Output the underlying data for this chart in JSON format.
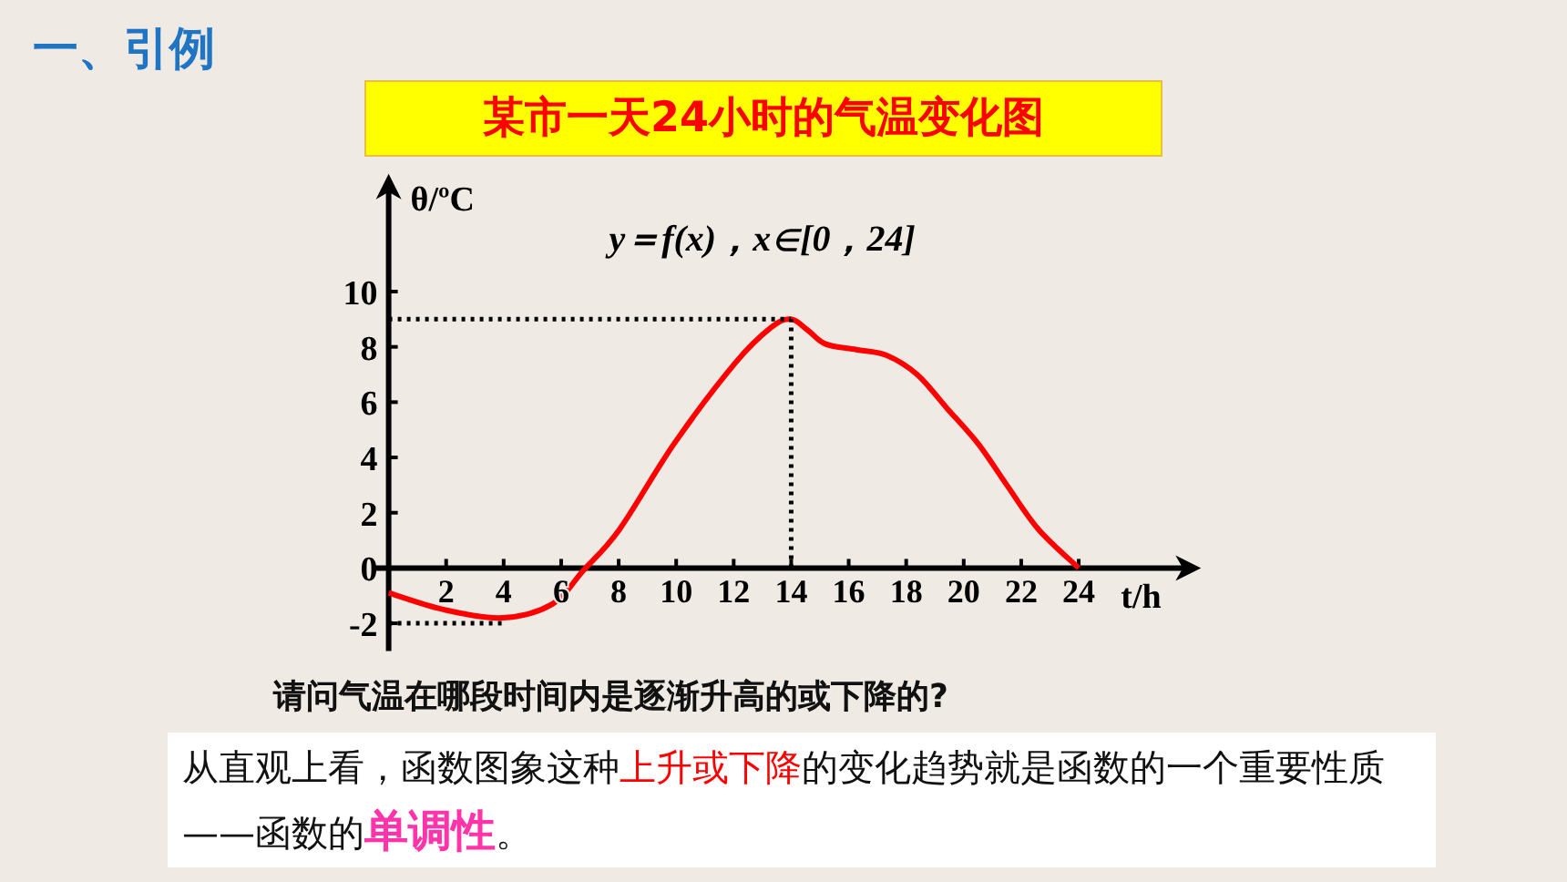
{
  "chart_data": {
    "type": "line",
    "title": "某市一天24小时的气温变化图",
    "xlabel": "t/h",
    "ylabel": "θ/ºC",
    "annotations": [
      "一、引例",
      "y＝f(x)，x∈[0，24]",
      "请问气温在哪段时间内是逐渐升高的或下降的?",
      "从直观上看，函数图象这种",
      "上升或下降",
      "的变化趋势就是函数的一个重要性质——函数的",
      "单调性",
      "。"
    ],
    "x": [
      0,
      1.9,
      3.97,
      5.7,
      6.76,
      8.03,
      9.93,
      12.04,
      13.3,
      13.99,
      14.58,
      15.2,
      16.27,
      17.3,
      18.38,
      19.4,
      20.5,
      21.5,
      22.6,
      24
    ],
    "series": [
      {
        "color": "#ff0000",
        "values": [
          -0.9,
          -1.5,
          -1.8,
          -1.3,
          -0.1,
          1.4,
          4.5,
          7.4,
          8.7,
          9,
          8.6,
          8.1,
          7.9,
          7.7,
          7,
          5.8,
          4.5,
          3,
          1.4,
          0
        ]
      }
    ],
    "xlim": [
      -0.5,
      28
    ],
    "ylim": [
      -3,
      14
    ],
    "xticks": [
      2,
      4,
      6,
      8,
      10,
      12,
      14,
      16,
      18,
      20,
      22,
      24
    ],
    "yticks": [
      -2,
      0,
      2,
      4,
      6,
      8,
      10
    ],
    "ref_lines": [
      {
        "axis": "y",
        "value": 9,
        "color": "#000000",
        "line_style": "dotted"
      },
      {
        "axis": "x",
        "value": 14,
        "color": "#000000",
        "line_style": "dotted"
      },
      {
        "axis": "y",
        "value": -2,
        "color": "#000000",
        "line_style": "dotted"
      }
    ],
    "line_style": "solid"
  }
}
